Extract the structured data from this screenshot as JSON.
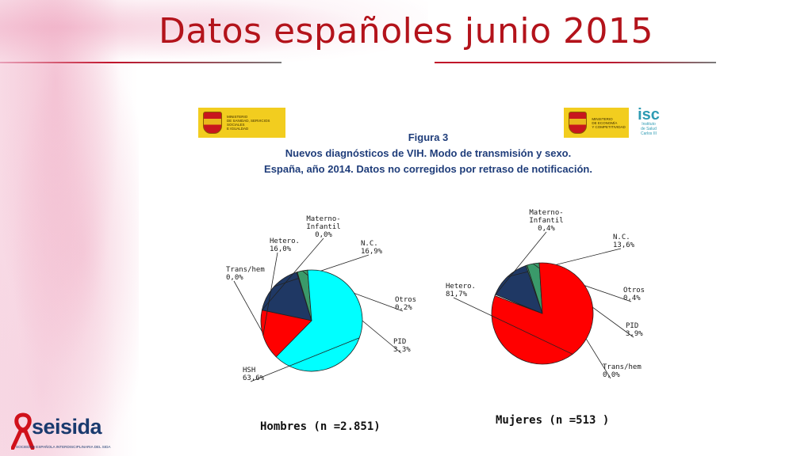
{
  "slide_title": "Datos españoles junio 2015",
  "logos": {
    "left_ministry": "MINISTERIO\nDE SANIDAD, SERVICIOS SOCIALES\nE IGUALDAD",
    "right_ministry": "MINISTERIO\nDE ECONOMÍA\nY COMPETITIVIDAD",
    "isc_mark": "isc",
    "isc_text": "Instituto\nde Salud\nCarlos III",
    "seisida_word": "seisida",
    "seisida_sub": "SOCIEDAD ESPAÑOLA INTERDISCIPLINARIA DEL SIDA"
  },
  "figure": {
    "number": "Figura 3",
    "title_line1": "Nuevos diagnósticos de VIH. Modo de transmisión y sexo.",
    "title_line2": "España, año 2014. Datos no corregidos por retraso de notificación."
  },
  "colors": {
    "title_red": "#b3131b",
    "HSH": "#00ffff",
    "Hetero": "#ff0000",
    "NC": "#1f3864",
    "PID": "#3a9a6a",
    "Otros": "#3a9a6a",
    "Trans_hem": "#ffffff",
    "Materno": "#ffffff"
  },
  "chart_data": [
    {
      "type": "pie",
      "caption": "Hombres (n =2.851)",
      "slices": [
        {
          "label": "N.C.",
          "value": 16.9,
          "text": "16,9%",
          "color": "#1f3864"
        },
        {
          "label": "Otros",
          "value": 0.2,
          "text": "0,2%",
          "color": "#3a9a6a"
        },
        {
          "label": "PID",
          "value": 3.3,
          "text": "3,3%",
          "color": "#3a9a6a"
        },
        {
          "label": "HSH",
          "value": 63.6,
          "text": "63,6%",
          "color": "#00ffff"
        },
        {
          "label": "Trans/hem",
          "value": 0.0,
          "text": "0,0%",
          "color": "#ffffff"
        },
        {
          "label": "Hetero.",
          "value": 16.0,
          "text": "16,0%",
          "color": "#ff0000"
        },
        {
          "label": "Materno-\nInfantil",
          "value": 0.0,
          "text": "0,0%",
          "color": "#ffffff"
        }
      ]
    },
    {
      "type": "pie",
      "caption": "Mujeres (n =513 )",
      "slices": [
        {
          "label": "N.C.",
          "value": 13.6,
          "text": "13,6%",
          "color": "#1f3864"
        },
        {
          "label": "Otros",
          "value": 0.4,
          "text": "0,4%",
          "color": "#3a9a6a"
        },
        {
          "label": "PID",
          "value": 3.9,
          "text": "3,9%",
          "color": "#3a9a6a"
        },
        {
          "label": "Trans/hem",
          "value": 0.0,
          "text": "0,0%",
          "color": "#ffffff"
        },
        {
          "label": "Hetero.",
          "value": 81.7,
          "text": "81,7%",
          "color": "#ff0000"
        },
        {
          "label": "Materno-\nInfantil",
          "value": 0.4,
          "text": "0,4%",
          "color": "#ffffff"
        }
      ]
    }
  ]
}
